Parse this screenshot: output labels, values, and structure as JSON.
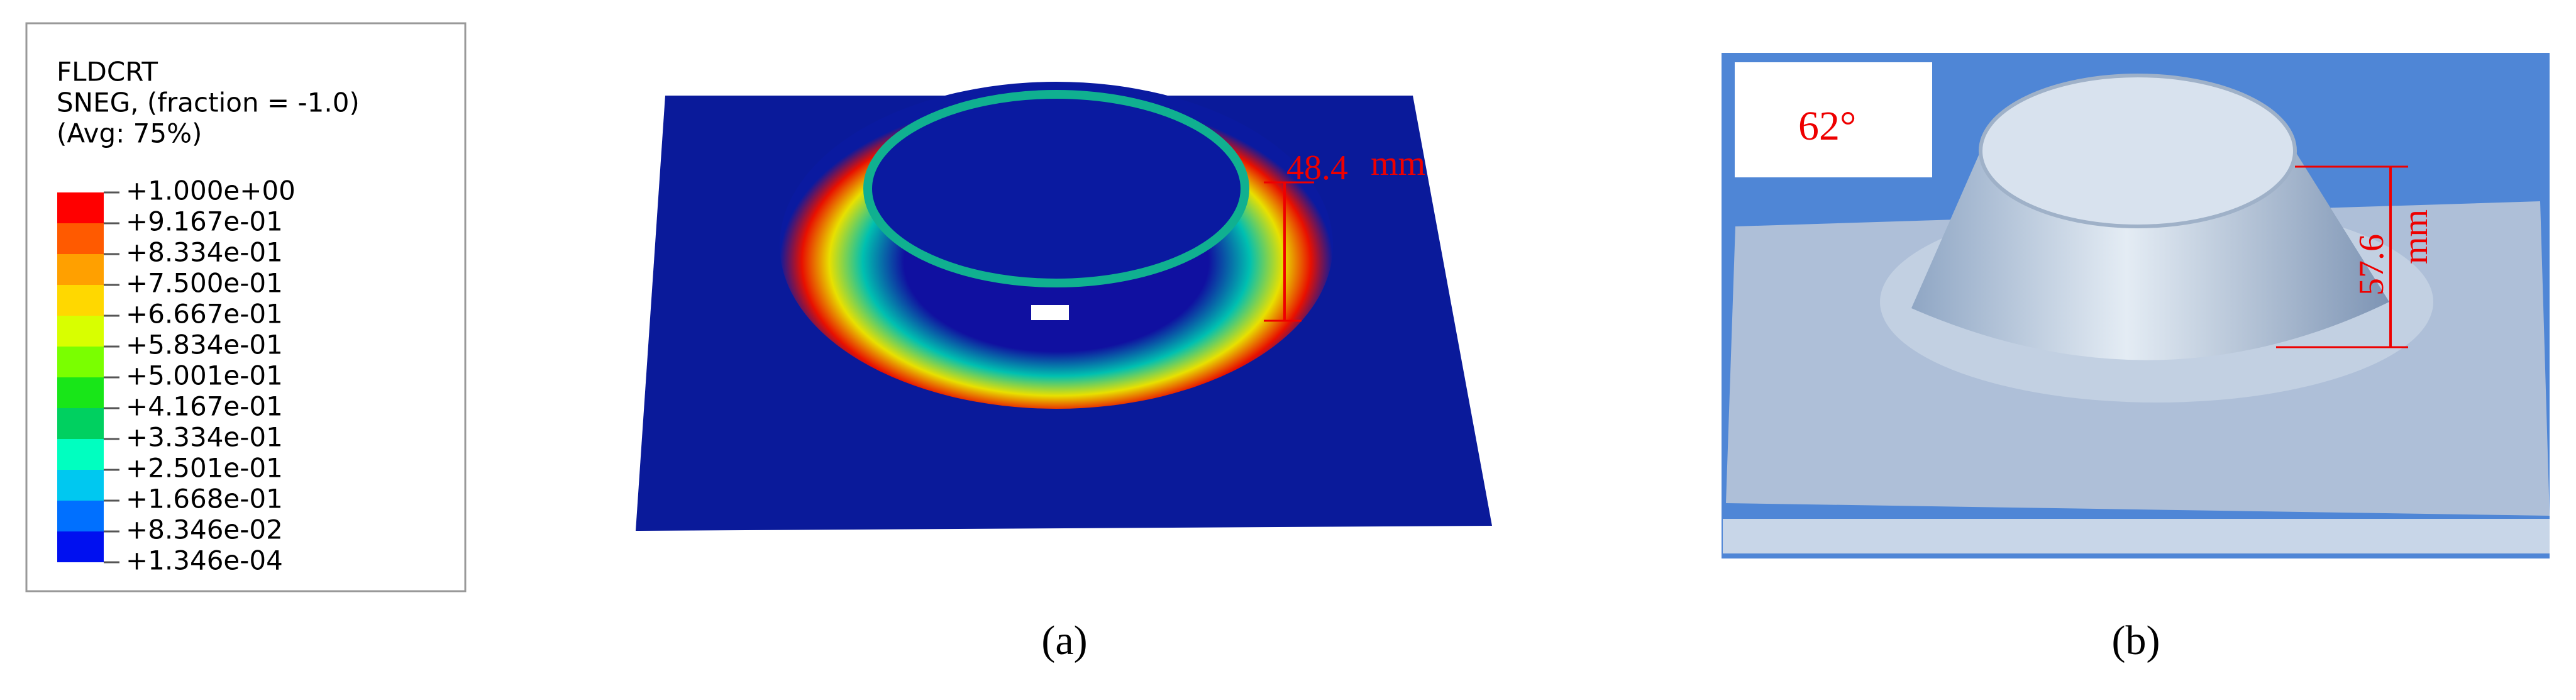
{
  "legend": {
    "title": [
      "FLDCRT",
      "SNEG, (fraction = -1.0)",
      "(Avg: 75%)"
    ],
    "levels": [
      "+1.000e+00",
      "+9.167e-01",
      "+8.334e-01",
      "+7.500e-01",
      "+6.667e-01",
      "+5.834e-01",
      "+5.001e-01",
      "+4.167e-01",
      "+3.334e-01",
      "+2.501e-01",
      "+1.668e-01",
      "+8.346e-02",
      "+1.346e-04"
    ],
    "colors": [
      "#ff0000",
      "#ff5a00",
      "#ffa000",
      "#ffd800",
      "#d8ff00",
      "#7aff00",
      "#18e618",
      "#00d060",
      "#00ffc0",
      "#00c8f0",
      "#0070ff",
      "#0010f0"
    ]
  },
  "panels": [
    {
      "label": "(a)",
      "height": "48.4",
      "unit": "mm"
    },
    {
      "label": "(b)",
      "angle": "62°",
      "height": "57.6",
      "unit": "mm"
    }
  ]
}
